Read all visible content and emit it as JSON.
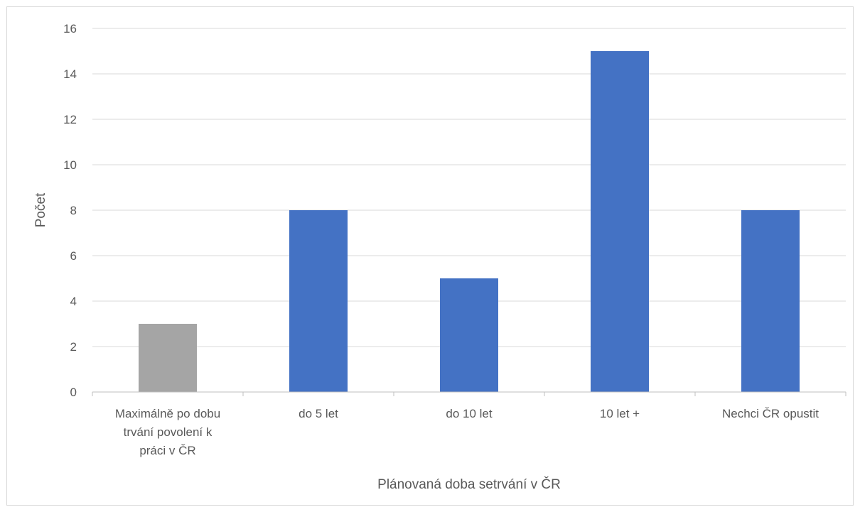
{
  "chart_data": {
    "type": "bar",
    "title": "",
    "xlabel": "Plánovaná doba setrvání v ČR",
    "ylabel": "Počet",
    "categories": [
      [
        "Maximálně po dobu",
        "trvání povolení k",
        "práci v ČR"
      ],
      [
        "do 5 let"
      ],
      [
        "do 10 let"
      ],
      [
        "10 let +"
      ],
      [
        "Nechci ČR opustit"
      ]
    ],
    "values": [
      3,
      8,
      5,
      15,
      8
    ],
    "bar_colors": [
      "#a5a5a5",
      "#4472c4",
      "#4472c4",
      "#4472c4",
      "#4472c4"
    ],
    "ylim": [
      0,
      16
    ],
    "yticks": [
      0,
      2,
      4,
      6,
      8,
      10,
      12,
      14,
      16
    ],
    "grid": true,
    "legend": "none",
    "colors": {
      "gridline": "#d9d9d9",
      "axis": "#bfbfbf",
      "text": "#595959"
    }
  }
}
